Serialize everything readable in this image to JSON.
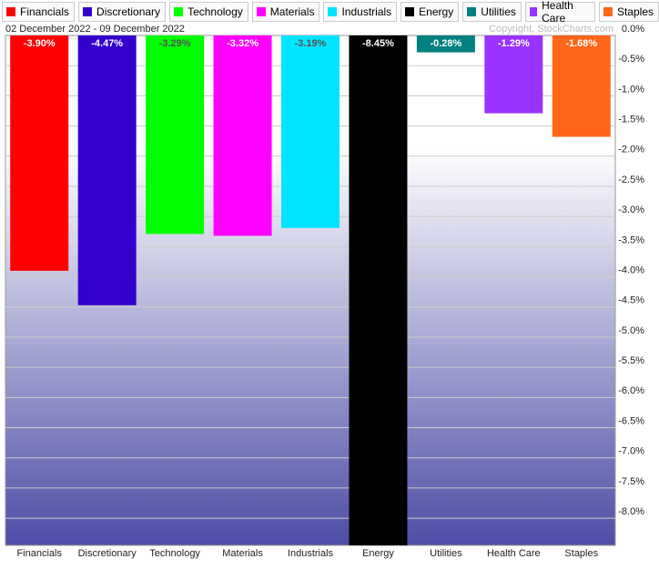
{
  "chart_data": {
    "type": "bar",
    "subtitle": "02 December 2022 - 09 December 2022",
    "source": "Copyright, StockCharts.com",
    "categories": [
      "Financials",
      "Discretionary",
      "Technology",
      "Materials",
      "Industrials",
      "Energy",
      "Utilities",
      "Health Care",
      "Staples"
    ],
    "values": [
      -3.9,
      -4.47,
      -3.29,
      -3.32,
      -3.19,
      -8.45,
      -0.28,
      -1.29,
      -1.68
    ],
    "value_labels": [
      "-3.90%",
      "-4.47%",
      "-3.29%",
      "-3.32%",
      "-3.19%",
      "-8.45%",
      "-0.28%",
      "-1.29%",
      "-1.68%"
    ],
    "colors": [
      "#ff0000",
      "#3300cc",
      "#00ff00",
      "#ff00ff",
      "#00e5ff",
      "#000000",
      "#008080",
      "#9933ff",
      "#ff6619"
    ],
    "ylim": [
      -8.45,
      0
    ],
    "yticks": [
      {
        "value": 0,
        "label": "0.0%"
      },
      {
        "value": -0.5,
        "label": "-0.5%"
      },
      {
        "value": -1,
        "label": "-1.0%"
      },
      {
        "value": -1.5,
        "label": "-1.5%"
      },
      {
        "value": -2,
        "label": "-2.0%"
      },
      {
        "value": -2.5,
        "label": "-2.5%"
      },
      {
        "value": -3,
        "label": "-3.0%"
      },
      {
        "value": -3.5,
        "label": "-3.5%"
      },
      {
        "value": -4,
        "label": "-4.0%"
      },
      {
        "value": -4.5,
        "label": "-4.5%"
      },
      {
        "value": -5,
        "label": "-5.0%"
      },
      {
        "value": -5.5,
        "label": "-5.5%"
      },
      {
        "value": -6,
        "label": "-6.0%"
      },
      {
        "value": -6.5,
        "label": "-6.5%"
      },
      {
        "value": -7,
        "label": "-7.0%"
      },
      {
        "value": -7.5,
        "label": "-7.5%"
      },
      {
        "value": -8,
        "label": "-8.0%"
      }
    ],
    "grid": true
  }
}
